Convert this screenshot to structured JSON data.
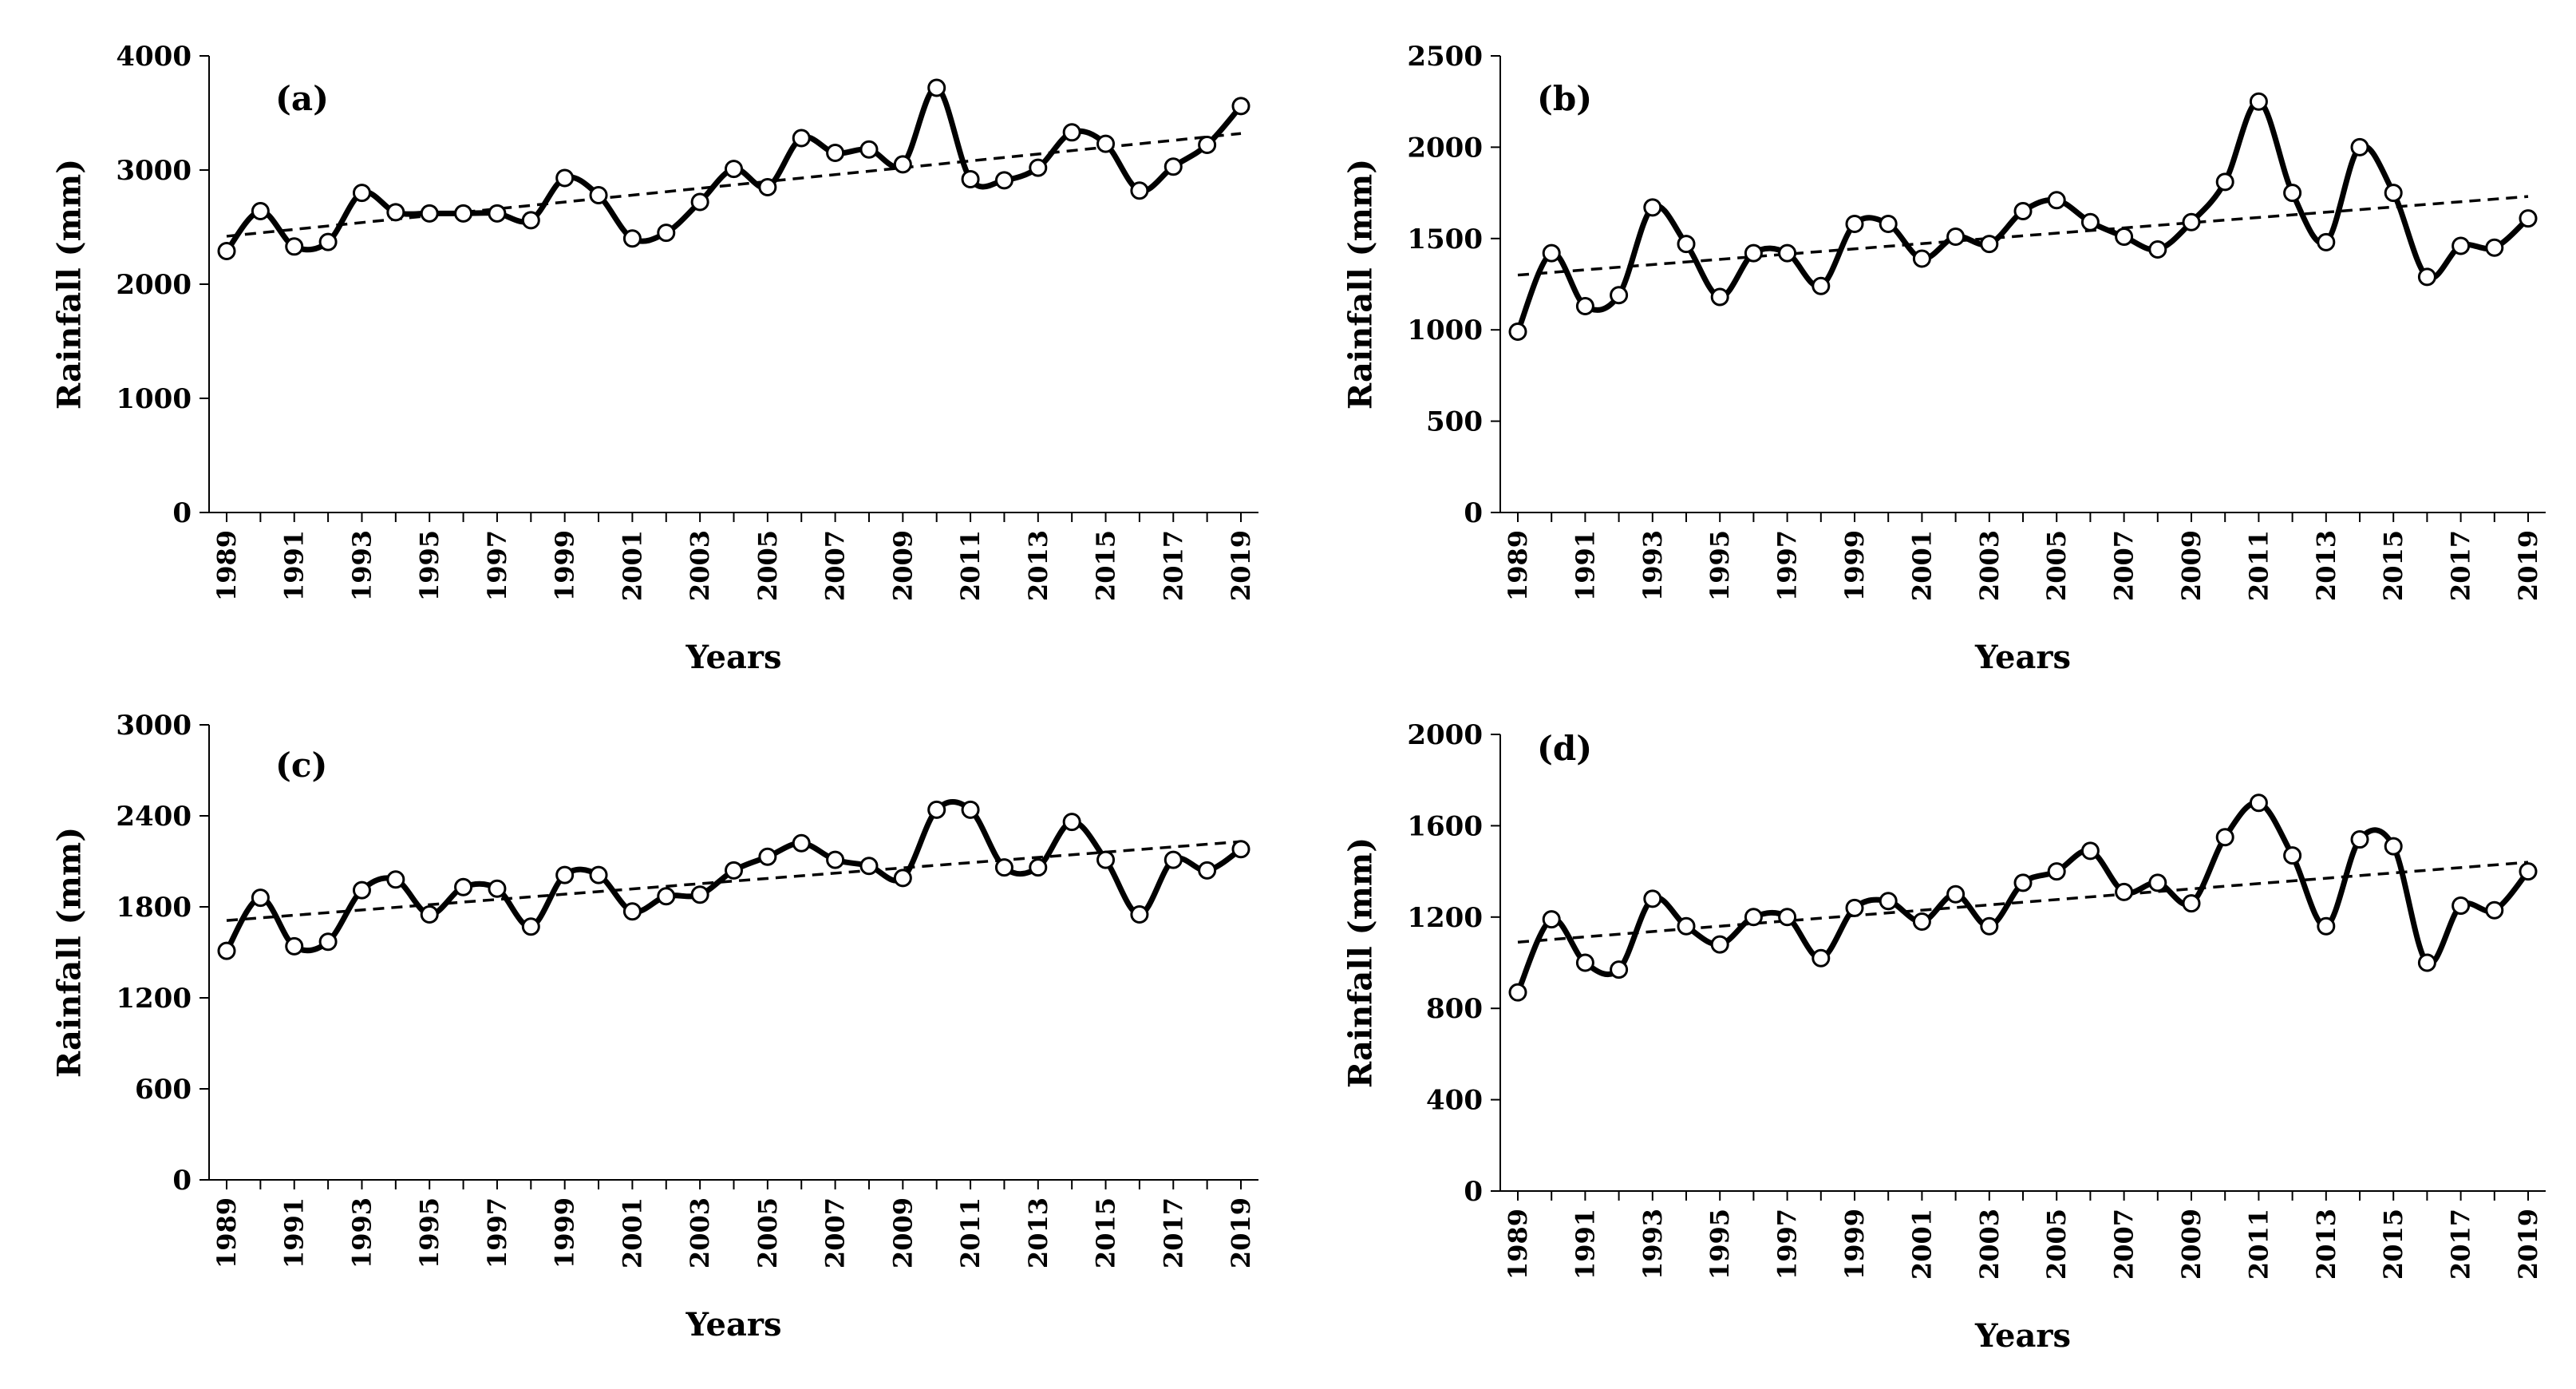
{
  "figure": {
    "marker_color": "#ffffff",
    "line_color": "#000000",
    "trend_color": "#000000"
  },
  "chart_data": [
    {
      "type": "line",
      "panel_label": "(a)",
      "xlabel": "Years",
      "ylabel": "Rainfall (mm)",
      "ylim": [
        0,
        4000
      ],
      "yticks": [
        "0",
        "1000",
        "2000",
        "3000",
        "4000"
      ],
      "xticks": [
        "1989",
        "1991",
        "1993",
        "1995",
        "1997",
        "1999",
        "2001",
        "2003",
        "2005",
        "2007",
        "2009",
        "2011",
        "2013",
        "2015",
        "2017",
        "2019"
      ],
      "x": [
        1989,
        1990,
        1991,
        1992,
        1993,
        1994,
        1995,
        1996,
        1997,
        1998,
        1999,
        2000,
        2001,
        2002,
        2003,
        2004,
        2005,
        2006,
        2007,
        2008,
        2009,
        2010,
        2011,
        2012,
        2013,
        2014,
        2015,
        2016,
        2017,
        2018,
        2019
      ],
      "series": [
        {
          "name": "Rainfall",
          "values": [
            2290,
            2640,
            2330,
            2370,
            2800,
            2630,
            2620,
            2620,
            2620,
            2560,
            2930,
            2780,
            2400,
            2450,
            2720,
            3010,
            2850,
            3280,
            3150,
            3180,
            3050,
            3720,
            2920,
            2910,
            3020,
            3330,
            3230,
            2820,
            3030,
            3220,
            3560
          ]
        }
      ],
      "trendline": {
        "name": "Linear trend",
        "values": [
          2420,
          3320
        ]
      }
    },
    {
      "type": "line",
      "panel_label": "(b)",
      "xlabel": "Years",
      "ylabel": "Rainfall (mm)",
      "ylim": [
        0,
        2500
      ],
      "yticks": [
        "0",
        "500",
        "1000",
        "1500",
        "2000",
        "2500"
      ],
      "xticks": [
        "1989",
        "1991",
        "1993",
        "1995",
        "1997",
        "1999",
        "2001",
        "2003",
        "2005",
        "2007",
        "2009",
        "2011",
        "2013",
        "2015",
        "2017",
        "2019"
      ],
      "x": [
        1989,
        1990,
        1991,
        1992,
        1993,
        1994,
        1995,
        1996,
        1997,
        1998,
        1999,
        2000,
        2001,
        2002,
        2003,
        2004,
        2005,
        2006,
        2007,
        2008,
        2009,
        2010,
        2011,
        2012,
        2013,
        2014,
        2015,
        2016,
        2017,
        2018,
        2019
      ],
      "series": [
        {
          "name": "Rainfall",
          "values": [
            990,
            1420,
            1130,
            1190,
            1670,
            1470,
            1180,
            1420,
            1420,
            1240,
            1580,
            1580,
            1390,
            1510,
            1470,
            1650,
            1710,
            1590,
            1510,
            1440,
            1590,
            1810,
            2250,
            1750,
            1480,
            2000,
            1750,
            1290,
            1460,
            1450,
            1610
          ]
        }
      ],
      "trendline": {
        "name": "Linear trend",
        "values": [
          1300,
          1730
        ]
      }
    },
    {
      "type": "line",
      "panel_label": "(c)",
      "xlabel": "Years",
      "ylabel": "Rainfall (mm)",
      "ylim": [
        0,
        3000
      ],
      "yticks": [
        "0",
        "600",
        "1200",
        "1800",
        "2400",
        "3000"
      ],
      "xticks": [
        "1989",
        "1991",
        "1993",
        "1995",
        "1997",
        "1999",
        "2001",
        "2003",
        "2005",
        "2007",
        "2009",
        "2011",
        "2013",
        "2015",
        "2017",
        "2019"
      ],
      "x": [
        1989,
        1990,
        1991,
        1992,
        1993,
        1994,
        1995,
        1996,
        1997,
        1998,
        1999,
        2000,
        2001,
        2002,
        2003,
        2004,
        2005,
        2006,
        2007,
        2008,
        2009,
        2010,
        2011,
        2012,
        2013,
        2014,
        2015,
        2016,
        2017,
        2018,
        2019
      ],
      "series": [
        {
          "name": "Rainfall",
          "values": [
            1510,
            1860,
            1540,
            1570,
            1910,
            1980,
            1750,
            1930,
            1920,
            1670,
            2010,
            2010,
            1770,
            1870,
            1880,
            2040,
            2130,
            2220,
            2110,
            2070,
            1990,
            2440,
            2440,
            2060,
            2060,
            2360,
            2110,
            1750,
            2110,
            2040,
            2180
          ]
        }
      ],
      "trendline": {
        "name": "Linear trend",
        "values": [
          1710,
          2230
        ]
      }
    },
    {
      "type": "line",
      "panel_label": "(d)",
      "xlabel": "Years",
      "ylabel": "Rainfall (mm)",
      "ylim": [
        0,
        2000
      ],
      "yticks": [
        "0",
        "400",
        "800",
        "1200",
        "1600",
        "2000"
      ],
      "xticks": [
        "1989",
        "1991",
        "1993",
        "1995",
        "1997",
        "1999",
        "2001",
        "2003",
        "2005",
        "2007",
        "2009",
        "2011",
        "2013",
        "2015",
        "2017",
        "2019"
      ],
      "x": [
        1989,
        1990,
        1991,
        1992,
        1993,
        1994,
        1995,
        1996,
        1997,
        1998,
        1999,
        2000,
        2001,
        2002,
        2003,
        2004,
        2005,
        2006,
        2007,
        2008,
        2009,
        2010,
        2011,
        2012,
        2013,
        2014,
        2015,
        2016,
        2017,
        2018,
        2019
      ],
      "series": [
        {
          "name": "Rainfall",
          "values": [
            870,
            1190,
            1000,
            970,
            1280,
            1160,
            1080,
            1200,
            1200,
            1020,
            1240,
            1270,
            1180,
            1300,
            1160,
            1350,
            1400,
            1490,
            1310,
            1350,
            1260,
            1550,
            1700,
            1470,
            1160,
            1540,
            1510,
            1000,
            1250,
            1230,
            1400
          ]
        }
      ],
      "trendline": {
        "name": "Linear trend",
        "values": [
          1090,
          1440
        ]
      }
    }
  ]
}
